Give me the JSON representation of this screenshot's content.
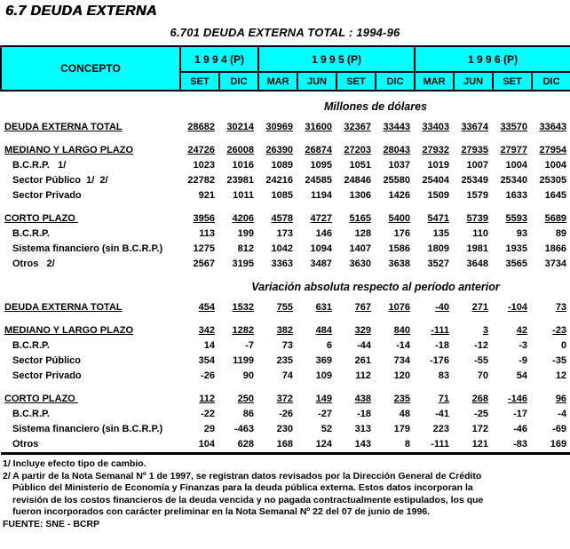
{
  "page": {
    "title": "6.7 DEUDA EXTERNA",
    "subtitle": "6.701  DEUDA EXTERNA TOTAL : 1994-96"
  },
  "colors": {
    "header_bg": "#00FFFF",
    "border": "#000000",
    "text": "#000000"
  },
  "table": {
    "concept_header": "CONCEPTO",
    "year_groups": [
      {
        "label": "1 9 9 4 (P)",
        "months": [
          "SET",
          "DIC"
        ]
      },
      {
        "label": "1 9 9 5 (P)",
        "months": [
          "MAR",
          "JUN",
          "SET",
          "DIC"
        ]
      },
      {
        "label": "1 9 9 6 (P)",
        "months": [
          "MAR",
          "JUN",
          "SET",
          "DIC"
        ]
      }
    ],
    "sections": [
      {
        "caption": "Millones de dólares",
        "rows": [
          {
            "label": "DEUDA EXTERNA TOTAL",
            "style": "total",
            "gap_before": false,
            "values": [
              28682,
              30214,
              30969,
              31600,
              32367,
              33443,
              33403,
              33674,
              33570,
              33643
            ]
          },
          {
            "label": "MEDIANO Y LARGO PLAZO",
            "style": "total",
            "gap_before": true,
            "values": [
              24726,
              26008,
              26390,
              26874,
              27203,
              28043,
              27932,
              27935,
              27977,
              27954
            ]
          },
          {
            "label": "B.C.R.P.   1/",
            "style": "detail",
            "gap_before": false,
            "values": [
              1023,
              1016,
              1089,
              1095,
              1051,
              1037,
              1019,
              1007,
              1004,
              1004
            ]
          },
          {
            "label": "Sector Público  1/  2/",
            "style": "detail",
            "gap_before": false,
            "values": [
              22782,
              23981,
              24216,
              24585,
              24846,
              25580,
              25404,
              25349,
              25340,
              25305
            ]
          },
          {
            "label": "Sector Privado",
            "style": "detail",
            "gap_before": false,
            "values": [
              921,
              1011,
              1085,
              1194,
              1306,
              1426,
              1509,
              1579,
              1633,
              1645
            ]
          },
          {
            "label": "CORTO PLAZO ",
            "style": "total",
            "gap_before": true,
            "values": [
              3956,
              4206,
              4578,
              4727,
              5165,
              5400,
              5471,
              5739,
              5593,
              5689
            ]
          },
          {
            "label": "B.C.R.P.",
            "style": "detail",
            "gap_before": false,
            "values": [
              113,
              199,
              173,
              146,
              128,
              176,
              135,
              110,
              93,
              89
            ]
          },
          {
            "label": "Sistema financiero (sin B.C.R.P.)",
            "style": "detail",
            "gap_before": false,
            "values": [
              1275,
              812,
              1042,
              1094,
              1407,
              1586,
              1809,
              1981,
              1935,
              1866
            ]
          },
          {
            "label": "Otros   2/",
            "style": "detail",
            "gap_before": false,
            "values": [
              2567,
              3195,
              3363,
              3487,
              3630,
              3638,
              3527,
              3648,
              3565,
              3734
            ]
          }
        ]
      },
      {
        "caption": "Variación absoluta respecto al período anterior",
        "rows": [
          {
            "label": "DEUDA EXTERNA TOTAL",
            "style": "total",
            "gap_before": false,
            "values": [
              454,
              1532,
              755,
              631,
              767,
              1076,
              -40,
              271,
              -104,
              73
            ]
          },
          {
            "label": "MEDIANO Y LARGO PLAZO",
            "style": "total",
            "gap_before": true,
            "values": [
              342,
              1282,
              382,
              484,
              329,
              840,
              -111,
              3,
              42,
              -23
            ]
          },
          {
            "label": "B.C.R.P.",
            "style": "detail",
            "gap_before": false,
            "values": [
              14,
              -7,
              73,
              6,
              -44,
              -14,
              -18,
              -12,
              -3,
              0
            ]
          },
          {
            "label": "Sector Público",
            "style": "detail",
            "gap_before": false,
            "values": [
              354,
              1199,
              235,
              369,
              261,
              734,
              -176,
              -55,
              -9,
              -35
            ]
          },
          {
            "label": "Sector Privado",
            "style": "detail",
            "gap_before": false,
            "values": [
              -26,
              90,
              74,
              109,
              112,
              120,
              83,
              70,
              54,
              12
            ]
          },
          {
            "label": "CORTO PLAZO ",
            "style": "total",
            "gap_before": true,
            "values": [
              112,
              250,
              372,
              149,
              438,
              235,
              71,
              268,
              -146,
              96
            ]
          },
          {
            "label": "B.C.R.P.",
            "style": "detail",
            "gap_before": false,
            "values": [
              -22,
              86,
              -26,
              -27,
              -18,
              48,
              -41,
              -25,
              -17,
              -4
            ]
          },
          {
            "label": "Sistema financiero (sin B.C.R.P.)",
            "style": "detail",
            "gap_before": false,
            "values": [
              29,
              -463,
              230,
              52,
              313,
              179,
              223,
              172,
              -46,
              -69
            ]
          },
          {
            "label": "Otros",
            "style": "detail",
            "gap_before": false,
            "values": [
              104,
              628,
              168,
              124,
              143,
              8,
              -111,
              121,
              -83,
              169
            ]
          }
        ]
      }
    ]
  },
  "footnotes": {
    "lines": [
      {
        "text": "1/ Incluye efecto tipo de cambio.",
        "indent": false
      },
      {
        "text": "2/ A partir de la Nota Semanal Nº 1 de 1997, se registran datos revisados por la Dirección General de Crédito",
        "indent": false
      },
      {
        "text": "Público del Ministerio de Economía y Finanzas para la deuda pública externa. Estos datos incorporan la",
        "indent": true
      },
      {
        "text": "revisión de los costos financieros de la deuda vencida y no pagada contractualmente estipulados, los que",
        "indent": true
      },
      {
        "text": "fueron incorporados con carácter preliminar en la Nota Semanal Nº 22 del 07 de junio de 1996.",
        "indent": true
      }
    ],
    "source": "FUENTE: SNE - BCRP"
  }
}
